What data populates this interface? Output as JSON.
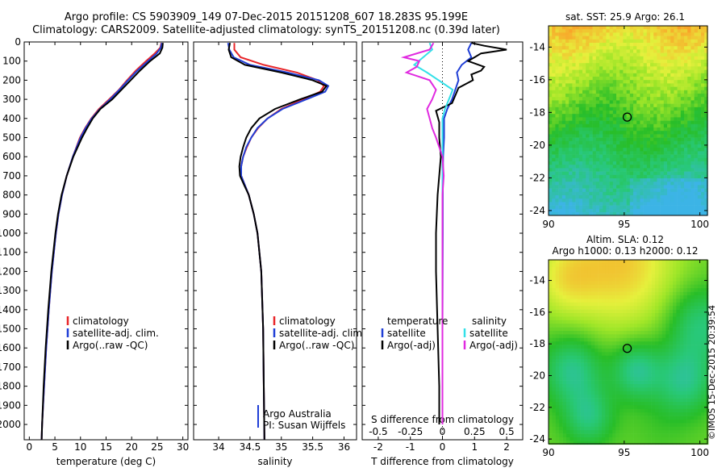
{
  "header": {
    "line1": "Argo profile: CS 5903909_149 07-Dec-2015 20151208_607 18.283S 95.199E",
    "line2": "Climatology: CARS2009. Satellite-adjusted climatology: synTS_20151208.nc (0.39d later)"
  },
  "map_titles": {
    "sst": "sat. SST: 25.9 Argo: 26.1",
    "sla1": "Altim. SLA: 0.12",
    "sla2": "Argo h1000: 0.13 h2000: 0.12"
  },
  "stamp": "©IMOS 15-Dec-2015 20:39:54",
  "notes": {
    "argo_australia": "Argo Australia",
    "pi": "PI: Susan Wijffels"
  },
  "colors": {
    "climatology": "#e8262a",
    "satellite": "#1f3ed6",
    "argo": "#000000",
    "sal_satellite": "#33e0e8",
    "sal_argo": "#e02ae0"
  },
  "chart_data": [
    {
      "type": "line",
      "panel": "temperature",
      "xlabel": "temperature (deg C)",
      "ylabel": "",
      "xlim": [
        -1,
        31
      ],
      "ylim": [
        2080,
        0
      ],
      "xticks": [
        "0",
        "5",
        "10",
        "15",
        "20",
        "25",
        "30"
      ],
      "yticks": [
        "0",
        "100",
        "200",
        "300",
        "400",
        "500",
        "600",
        "700",
        "800",
        "900",
        "1000",
        "1100",
        "1200",
        "1300",
        "1400",
        "1500",
        "1600",
        "1700",
        "1800",
        "1900",
        "2000"
      ],
      "legend": [
        "climatology",
        "satellite-adj. clim.",
        "Argo(..raw -QC)"
      ],
      "series": [
        {
          "name": "climatology",
          "depth": [
            5,
            30,
            60,
            100,
            150,
            200,
            250,
            300,
            350,
            400,
            450,
            500,
            600,
            700,
            800,
            900,
            1000,
            1200,
            1400,
            1600,
            1800,
            2000,
            2080
          ],
          "values": [
            25.8,
            25.6,
            24.5,
            22.8,
            20.8,
            19.1,
            17.5,
            15.6,
            13.6,
            12.1,
            10.9,
            9.9,
            8.5,
            7.3,
            6.4,
            5.7,
            5.2,
            4.4,
            3.8,
            3.3,
            2.9,
            2.5,
            2.4
          ]
        },
        {
          "name": "satellite-adj. clim.",
          "depth": [
            5,
            30,
            60,
            100,
            150,
            200,
            250,
            300,
            350,
            400,
            450,
            500,
            600,
            700,
            800,
            900,
            1000,
            1200,
            1400,
            1600,
            1800,
            2000,
            2080
          ],
          "values": [
            25.9,
            25.7,
            24.9,
            23.2,
            21.1,
            19.3,
            17.6,
            15.8,
            13.8,
            12.2,
            11.0,
            10.0,
            8.5,
            7.3,
            6.4,
            5.7,
            5.2,
            4.4,
            3.8,
            3.3,
            2.9,
            2.5,
            2.4
          ]
        },
        {
          "name": "Argo(..raw -QC)",
          "depth": [
            5,
            30,
            60,
            100,
            150,
            200,
            250,
            300,
            350,
            400,
            450,
            500,
            600,
            700,
            800,
            900,
            1000,
            1200,
            1400,
            1600,
            1800,
            2000,
            2080
          ],
          "values": [
            26.1,
            26.0,
            25.5,
            23.6,
            21.6,
            19.8,
            18.0,
            16.2,
            13.9,
            12.4,
            11.3,
            10.3,
            8.6,
            7.3,
            6.3,
            5.6,
            5.1,
            4.3,
            3.7,
            3.2,
            2.8,
            2.5,
            2.4
          ]
        }
      ]
    },
    {
      "type": "line",
      "panel": "salinity",
      "xlabel": "salinity",
      "ylabel": "",
      "xlim": [
        33.6,
        36.2
      ],
      "ylim": [
        2080,
        0
      ],
      "xticks": [
        "34",
        "34.5",
        "35",
        "35.5",
        "36"
      ],
      "legend": [
        "climatology",
        "satellite-adj. clim.",
        "Argo(..raw -QC)"
      ],
      "series": [
        {
          "name": "climatology",
          "depth": [
            5,
            40,
            80,
            120,
            160,
            200,
            230,
            260,
            300,
            350,
            400,
            450,
            500,
            550,
            600,
            650,
            700,
            750,
            800,
            900,
            1000,
            1200,
            1500,
            1800,
            2080
          ],
          "values": [
            34.25,
            34.25,
            34.35,
            34.72,
            35.25,
            35.58,
            35.68,
            35.62,
            35.35,
            35.0,
            34.78,
            34.63,
            34.52,
            34.45,
            34.39,
            34.36,
            34.36,
            34.42,
            34.48,
            34.56,
            34.62,
            34.68,
            34.71,
            34.72,
            34.73
          ]
        },
        {
          "name": "satellite-adj. clim.",
          "depth": [
            5,
            40,
            80,
            120,
            160,
            200,
            230,
            260,
            300,
            350,
            400,
            450,
            500,
            550,
            600,
            650,
            700,
            750,
            800,
            900,
            1000,
            1200,
            1500,
            1800,
            2080
          ],
          "values": [
            34.15,
            34.17,
            34.24,
            34.5,
            35.1,
            35.6,
            35.75,
            35.7,
            35.4,
            35.02,
            34.78,
            34.62,
            34.52,
            34.44,
            34.39,
            34.36,
            34.36,
            34.42,
            34.48,
            34.56,
            34.62,
            34.68,
            34.71,
            34.72,
            34.73
          ]
        },
        {
          "name": "Argo(..raw -QC)",
          "depth": [
            5,
            40,
            80,
            120,
            160,
            200,
            230,
            260,
            300,
            350,
            400,
            450,
            500,
            550,
            600,
            650,
            700,
            750,
            800,
            900,
            1000,
            1200,
            1500,
            1800,
            2080
          ],
          "values": [
            34.18,
            34.16,
            34.2,
            34.42,
            35.0,
            35.5,
            35.72,
            35.65,
            35.3,
            34.9,
            34.65,
            34.52,
            34.44,
            34.39,
            34.35,
            34.33,
            34.34,
            34.41,
            34.48,
            34.56,
            34.62,
            34.68,
            34.71,
            34.72,
            34.73
          ]
        }
      ]
    },
    {
      "type": "line",
      "panel": "difference",
      "xlabel": "T difference from climatology",
      "xlabel_top": "S difference from climatology",
      "xlim": [
        -2.5,
        2.5
      ],
      "ylim": [
        2080,
        0
      ],
      "xticks_t": [
        "-2",
        "-1",
        "0",
        "1",
        "2"
      ],
      "xticks_s": [
        "-0.5",
        "-0.25",
        "0",
        "0.25",
        "0.5"
      ],
      "legend": {
        "temperature_title": "temperature",
        "temperature": [
          "satellite",
          "Argo(-adj)"
        ],
        "salinity_title": "salinity",
        "salinity": [
          "satellite",
          "Argo(-adj)"
        ]
      },
      "series": [
        {
          "name": "T satellite",
          "depth": [
            5,
            40,
            80,
            120,
            160,
            200,
            250,
            300,
            350,
            400,
            500,
            600,
            800,
            1000,
            1500,
            2000
          ],
          "values": [
            0.9,
            0.8,
            0.9,
            0.6,
            0.45,
            0.5,
            0.4,
            0.3,
            0.15,
            0.05,
            0.05,
            0.02,
            0.01,
            0.01,
            0,
            0
          ]
        },
        {
          "name": "T Argo(-adj)",
          "depth": [
            5,
            20,
            40,
            60,
            80,
            100,
            130,
            150,
            170,
            200,
            240,
            280,
            320,
            360,
            420,
            500,
            600,
            800,
            1000,
            1200,
            1500,
            1800,
            2000
          ],
          "values": [
            0.9,
            1.3,
            2.0,
            1.2,
            1.0,
            0.8,
            1.3,
            1.2,
            0.9,
            0.95,
            0.5,
            0.4,
            0.3,
            -0.2,
            -0.1,
            -0.1,
            -0.05,
            -0.15,
            -0.2,
            -0.2,
            -0.15,
            -0.1,
            -0.1
          ]
        },
        {
          "name": "S satellite",
          "depth": [
            5,
            40,
            80,
            120,
            160,
            200,
            250,
            300,
            350,
            400,
            500,
            600,
            800,
            1000,
            1500,
            2000
          ],
          "values": [
            -0.1,
            -0.08,
            -0.15,
            -0.22,
            -0.12,
            -0.03,
            0.08,
            0.05,
            0.02,
            0.0,
            0.0,
            0.0,
            0.0,
            0.0,
            0.0,
            0.0
          ]
        },
        {
          "name": "S Argo(-adj)",
          "depth": [
            5,
            40,
            80,
            100,
            130,
            160,
            200,
            250,
            300,
            350,
            400,
            450,
            500,
            600,
            700,
            800,
            1000,
            1200,
            1500,
            2000
          ],
          "values": [
            -0.07,
            -0.1,
            -0.3,
            -0.18,
            -0.2,
            -0.28,
            -0.1,
            -0.05,
            -0.08,
            -0.12,
            -0.1,
            -0.08,
            -0.05,
            0.0,
            0.01,
            0.0,
            0.0,
            0.0,
            0.0,
            0.0
          ]
        }
      ]
    },
    {
      "type": "heatmap",
      "panel": "sst_map",
      "title": "sat. SST: 25.9 Argo: 26.1",
      "xlim": [
        90,
        100.5
      ],
      "ylim": [
        -24.3,
        -12.7
      ],
      "xticks": [
        "90",
        "95",
        "100"
      ],
      "yticks": [
        "-14",
        "-16",
        "-18",
        "-20",
        "-22",
        "-24"
      ],
      "argo_position": {
        "lon": 95.199,
        "lat": -18.283
      }
    },
    {
      "type": "heatmap",
      "panel": "sla_map",
      "title": "Altim. SLA: 0.12",
      "xlim": [
        90,
        100.5
      ],
      "ylim": [
        -24.3,
        -12.7
      ],
      "xticks": [
        "90",
        "95",
        "100"
      ],
      "yticks": [
        "-14",
        "-16",
        "-18",
        "-20",
        "-22",
        "-24"
      ],
      "argo_position": {
        "lon": 95.199,
        "lat": -18.283
      }
    }
  ]
}
